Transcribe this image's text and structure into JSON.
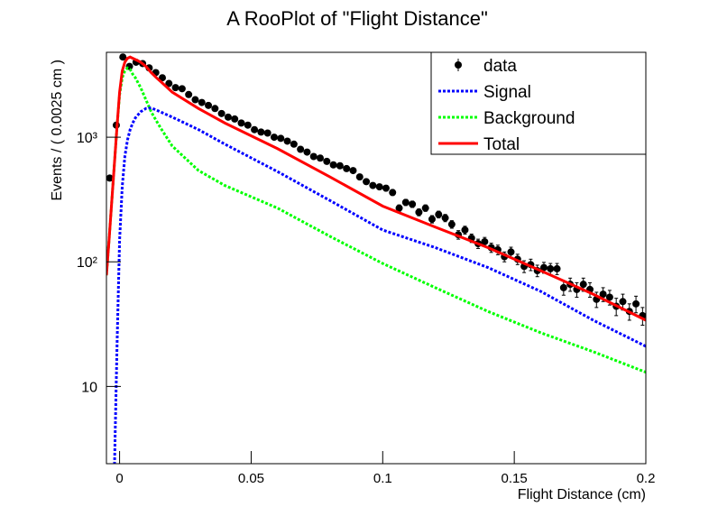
{
  "chart_data": {
    "type": "line",
    "title": "A RooPlot of \"Flight Distance\"",
    "xlabel": "Flight Distance (cm)",
    "ylabel": "Events / ( 0.0025 cm )",
    "xlim": [
      -0.005,
      0.2
    ],
    "ylim": [
      2.4,
      4800
    ],
    "log_y": true,
    "xticks": [
      0,
      0.05,
      0.1,
      0.15,
      0.2
    ],
    "yticks": [
      {
        "value": 10,
        "label": "10"
      },
      {
        "value": 100,
        "label": "10²"
      },
      {
        "value": 1000,
        "label": "10³"
      }
    ],
    "legend": "top-right",
    "points": {
      "name": "data",
      "color": "#000000",
      "x": [
        -0.00375,
        -0.00125,
        0.00125,
        0.00375,
        0.00625,
        0.00875,
        0.01125,
        0.01375,
        0.01625,
        0.01875,
        0.02125,
        0.02375,
        0.02625,
        0.02875,
        0.03125,
        0.03375,
        0.03625,
        0.03875,
        0.04125,
        0.04375,
        0.04625,
        0.04875,
        0.05125,
        0.05375,
        0.05625,
        0.05875,
        0.06125,
        0.06375,
        0.06625,
        0.06875,
        0.07125,
        0.07375,
        0.07625,
        0.07875,
        0.08125,
        0.08375,
        0.08625,
        0.08875,
        0.09125,
        0.09375,
        0.09625,
        0.09875,
        0.10125,
        0.10375,
        0.10625,
        0.10875,
        0.11125,
        0.11375,
        0.11625,
        0.11875,
        0.12125,
        0.12375,
        0.12625,
        0.12875,
        0.13125,
        0.13375,
        0.13625,
        0.13875,
        0.14125,
        0.14375,
        0.14625,
        0.14875,
        0.15125,
        0.15375,
        0.15625,
        0.15875,
        0.16125,
        0.16375,
        0.16625,
        0.16875,
        0.17125,
        0.17375,
        0.17625,
        0.17875,
        0.18125,
        0.18375,
        0.18625,
        0.18875,
        0.19125,
        0.19375,
        0.19625,
        0.19875
      ],
      "values": [
        470,
        1250,
        4400,
        3700,
        4000,
        3900,
        3600,
        3300,
        3000,
        2700,
        2500,
        2450,
        2200,
        2000,
        1900,
        1800,
        1700,
        1550,
        1450,
        1400,
        1300,
        1250,
        1150,
        1100,
        1080,
        1000,
        980,
        930,
        880,
        800,
        760,
        700,
        680,
        640,
        600,
        590,
        560,
        540,
        480,
        440,
        410,
        400,
        390,
        360,
        270,
        300,
        290,
        250,
        270,
        220,
        240,
        225,
        200,
        165,
        180,
        155,
        140,
        145,
        130,
        125,
        110,
        120,
        105,
        92,
        95,
        85,
        90,
        88,
        88,
        62,
        66,
        60,
        66,
        60,
        50,
        55,
        52,
        44,
        48,
        40,
        46,
        37
      ],
      "errors": [
        22,
        35,
        66,
        61,
        63,
        62,
        60,
        57,
        55,
        52,
        50,
        49,
        47,
        45,
        44,
        42,
        41,
        39,
        38,
        37,
        36,
        35,
        34,
        33,
        33,
        32,
        31,
        30,
        30,
        28,
        28,
        26,
        26,
        25,
        24,
        24,
        24,
        23,
        22,
        21,
        20,
        20,
        20,
        19,
        16,
        17,
        17,
        16,
        16,
        15,
        15,
        15,
        14,
        13,
        13,
        12,
        12,
        12,
        11,
        11,
        10,
        11,
        10,
        10,
        10,
        9,
        9,
        9,
        9,
        8,
        8,
        8,
        8,
        8,
        7,
        7,
        7,
        7,
        7,
        6,
        7,
        6
      ]
    },
    "x": [
      -0.005,
      -0.004,
      -0.003,
      -0.002,
      -0.001,
      0,
      0.001,
      0.002,
      0.003,
      0.004,
      0.005,
      0.006,
      0.008,
      0.01,
      0.012,
      0.014,
      0.016,
      0.02,
      0.03,
      0.04,
      0.06,
      0.08,
      0.1,
      0.12,
      0.14,
      0.16,
      0.18,
      0.2
    ],
    "series": [
      {
        "name": "Signal",
        "color": "#0000ff",
        "style": "dashed",
        "values": [
          null,
          null,
          null,
          2,
          20,
          150,
          400,
          700,
          950,
          1150,
          1300,
          1430,
          1600,
          1700,
          1720,
          1650,
          1580,
          1450,
          1150,
          880,
          530,
          310,
          180,
          130,
          90,
          58,
          34,
          21
        ]
      },
      {
        "name": "Background",
        "color": "#00ff00",
        "style": "dashed",
        "values": [
          78,
          150,
          300,
          600,
          1200,
          2200,
          3000,
          3400,
          3600,
          3500,
          3200,
          3000,
          2500,
          2000,
          1600,
          1350,
          1150,
          850,
          540,
          410,
          270,
          160,
          97,
          62,
          40,
          27,
          19,
          13
        ]
      },
      {
        "name": "Total",
        "color": "#ff0000",
        "style": "solid",
        "values": [
          78,
          150,
          300,
          600,
          1200,
          2300,
          3400,
          4000,
          4300,
          4400,
          4300,
          4200,
          4000,
          3700,
          3300,
          3000,
          2750,
          2300,
          1700,
          1300,
          810,
          480,
          280,
          190,
          130,
          85,
          55,
          34
        ]
      }
    ]
  }
}
